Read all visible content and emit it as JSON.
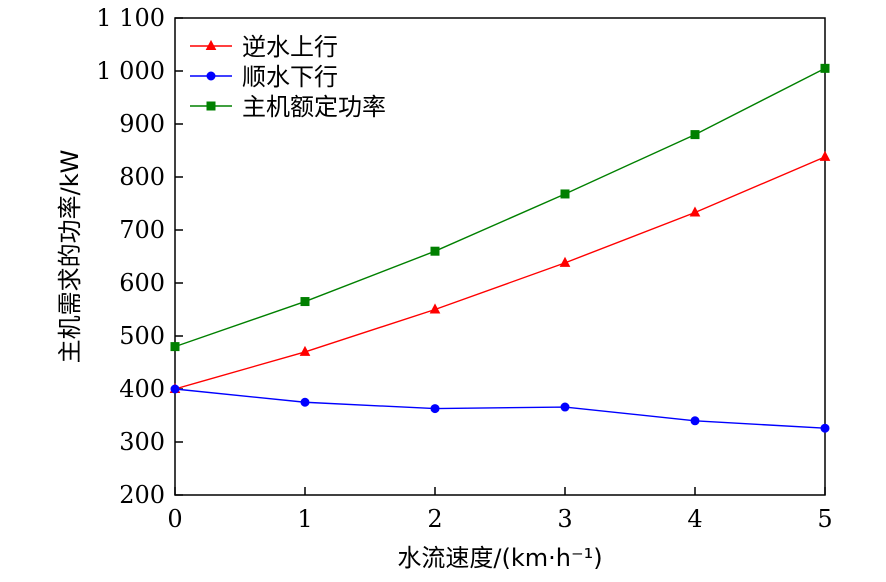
{
  "chart_data": {
    "type": "line",
    "xlabel": "水流速度/(km·h⁻¹)",
    "ylabel": "主机需求的功率/kW",
    "xlim": [
      0,
      5
    ],
    "ylim": [
      200,
      1100
    ],
    "xticks": [
      0,
      1,
      2,
      3,
      4,
      5
    ],
    "xtick_labels": [
      "0",
      "1",
      "2",
      "3",
      "4",
      "5"
    ],
    "yticks": [
      200,
      300,
      400,
      500,
      600,
      700,
      800,
      900,
      1000,
      1100
    ],
    "ytick_labels": [
      "200",
      "300",
      "400",
      "500",
      "600",
      "700",
      "800",
      "900",
      "1 000",
      "1 100"
    ],
    "grid": false,
    "legend_position": "top-left",
    "x": [
      0,
      1,
      2,
      3,
      4,
      5
    ],
    "series": [
      {
        "name": "逆水上行",
        "color": "#ff0000",
        "marker": "triangle",
        "values": [
          400,
          470,
          550,
          638,
          733,
          838
        ]
      },
      {
        "name": "顺水下行",
        "color": "#0000ff",
        "marker": "circle",
        "values": [
          400,
          375,
          363,
          366,
          340,
          326
        ]
      },
      {
        "name": "主机额定功率",
        "color": "#008000",
        "marker": "square",
        "values": [
          480,
          565,
          660,
          768,
          880,
          1005
        ]
      }
    ]
  }
}
